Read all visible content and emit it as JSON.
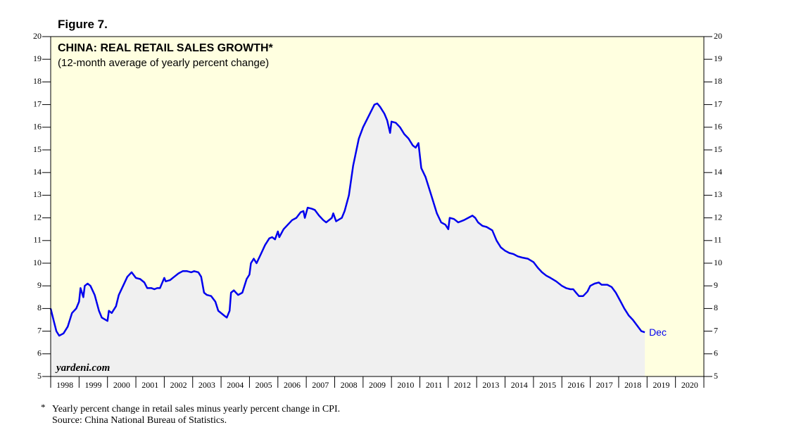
{
  "figure_label": "Figure 7.",
  "chart_data": {
    "type": "area",
    "title": "CHINA: REAL RETAIL SALES GROWTH*",
    "subtitle": "(12-month average of yearly percent change)",
    "annotation": "Dec",
    "watermark": "yardeni.com",
    "color": "#0000ee",
    "fill_color": "#f0f0f0",
    "background": "#ffffe0",
    "xlim": [
      1998,
      2021
    ],
    "xticks": [
      1998,
      1999,
      2000,
      2001,
      2002,
      2003,
      2004,
      2005,
      2006,
      2007,
      2008,
      2009,
      2010,
      2011,
      2012,
      2013,
      2014,
      2015,
      2016,
      2017,
      2018,
      2019,
      2020,
      2021
    ],
    "x_tick_labels": [
      "1998",
      "1999",
      "2000",
      "2001",
      "2002",
      "2003",
      "2004",
      "2005",
      "2006",
      "2007",
      "2008",
      "2009",
      "2010",
      "2011",
      "2012",
      "2013",
      "2014",
      "2015",
      "2016",
      "2017",
      "2018",
      "2019",
      "2020"
    ],
    "ylim": [
      5,
      20
    ],
    "yticks": [
      5,
      6,
      7,
      8,
      9,
      10,
      11,
      12,
      13,
      14,
      15,
      16,
      17,
      18,
      19,
      20
    ],
    "x": [
      1998.0,
      1998.1,
      1998.2,
      1998.3,
      1998.45,
      1998.6,
      1998.75,
      1998.9,
      1999.0,
      1999.05,
      1999.15,
      1999.2,
      1999.3,
      1999.4,
      1999.55,
      1999.7,
      1999.8,
      2000.0,
      2000.05,
      2000.15,
      2000.3,
      2000.4,
      2000.55,
      2000.7,
      2000.85,
      2001.0,
      2001.15,
      2001.3,
      2001.4,
      2001.55,
      2001.65,
      2001.75,
      2001.85,
      2002.0,
      2002.05,
      2002.2,
      2002.35,
      2002.5,
      2002.65,
      2002.8,
      2002.95,
      2003.05,
      2003.2,
      2003.3,
      2003.4,
      2003.5,
      2003.65,
      2003.8,
      2003.9,
      2004.1,
      2004.2,
      2004.3,
      2004.35,
      2004.45,
      2004.6,
      2004.75,
      2004.9,
      2005.0,
      2005.05,
      2005.15,
      2005.25,
      2005.4,
      2005.55,
      2005.7,
      2005.8,
      2005.9,
      2006.0,
      2006.05,
      2006.2,
      2006.35,
      2006.5,
      2006.65,
      2006.8,
      2006.9,
      2006.95,
      2007.05,
      2007.2,
      2007.3,
      2007.45,
      2007.6,
      2007.7,
      2007.9,
      2007.95,
      2008.05,
      2008.25,
      2008.35,
      2008.5,
      2008.65,
      2008.85,
      2009.0,
      2009.2,
      2009.4,
      2009.5,
      2009.6,
      2009.75,
      2009.85,
      2009.95,
      2010.0,
      2010.15,
      2010.3,
      2010.45,
      2010.6,
      2010.75,
      2010.85,
      2010.95,
      2011.05,
      2011.2,
      2011.4,
      2011.6,
      2011.75,
      2011.9,
      2012.0,
      2012.05,
      2012.2,
      2012.35,
      2012.55,
      2012.7,
      2012.85,
      2012.95,
      2013.05,
      2013.2,
      2013.35,
      2013.55,
      2013.7,
      2013.85,
      2014.0,
      2014.15,
      2014.3,
      2014.45,
      2014.6,
      2014.8,
      2015.0,
      2015.15,
      2015.3,
      2015.45,
      2015.6,
      2015.8,
      2016.0,
      2016.15,
      2016.3,
      2016.4,
      2016.5,
      2016.6,
      2016.75,
      2016.9,
      2017.0,
      2017.15,
      2017.3,
      2017.4,
      2017.6,
      2017.75,
      2017.9,
      2018.05,
      2018.2,
      2018.35,
      2018.5,
      2018.65,
      2018.8,
      2018.92
    ],
    "values": [
      8.0,
      7.5,
      7.0,
      6.8,
      6.9,
      7.2,
      7.8,
      8.0,
      8.3,
      8.9,
      8.5,
      9.0,
      9.1,
      9.0,
      8.6,
      7.9,
      7.6,
      7.45,
      7.9,
      7.8,
      8.1,
      8.6,
      9.0,
      9.4,
      9.6,
      9.35,
      9.3,
      9.15,
      8.9,
      8.9,
      8.85,
      8.9,
      8.9,
      9.35,
      9.2,
      9.25,
      9.4,
      9.55,
      9.65,
      9.65,
      9.6,
      9.65,
      9.6,
      9.4,
      8.7,
      8.6,
      8.55,
      8.3,
      7.9,
      7.7,
      7.6,
      7.9,
      8.7,
      8.8,
      8.6,
      8.7,
      9.3,
      9.5,
      10.0,
      10.2,
      10.0,
      10.4,
      10.8,
      11.1,
      11.15,
      11.05,
      11.4,
      11.15,
      11.5,
      11.7,
      11.9,
      12.0,
      12.25,
      12.3,
      12.0,
      12.45,
      12.4,
      12.35,
      12.1,
      11.9,
      11.8,
      12.0,
      12.2,
      11.85,
      12.0,
      12.3,
      13.0,
      14.3,
      15.5,
      16.0,
      16.5,
      17.0,
      17.05,
      16.9,
      16.6,
      16.3,
      15.75,
      16.25,
      16.2,
      16.0,
      15.7,
      15.5,
      15.2,
      15.1,
      15.3,
      14.2,
      13.8,
      13.0,
      12.2,
      11.8,
      11.7,
      11.5,
      12.0,
      11.95,
      11.8,
      11.9,
      12.0,
      12.1,
      12.0,
      11.8,
      11.65,
      11.6,
      11.45,
      11.0,
      10.7,
      10.55,
      10.45,
      10.4,
      10.3,
      10.25,
      10.2,
      10.05,
      9.8,
      9.6,
      9.45,
      9.35,
      9.2,
      9.0,
      8.9,
      8.85,
      8.85,
      8.7,
      8.55,
      8.55,
      8.75,
      9.0,
      9.1,
      9.15,
      9.05,
      9.05,
      8.95,
      8.7,
      8.35,
      8.0,
      7.7,
      7.5,
      7.25,
      7.0,
      6.95
    ]
  },
  "footnote": {
    "marker": "*",
    "note": "Yearly percent change in retail sales minus yearly percent change in CPI.",
    "source": "Source: China National Bureau of Statistics."
  }
}
